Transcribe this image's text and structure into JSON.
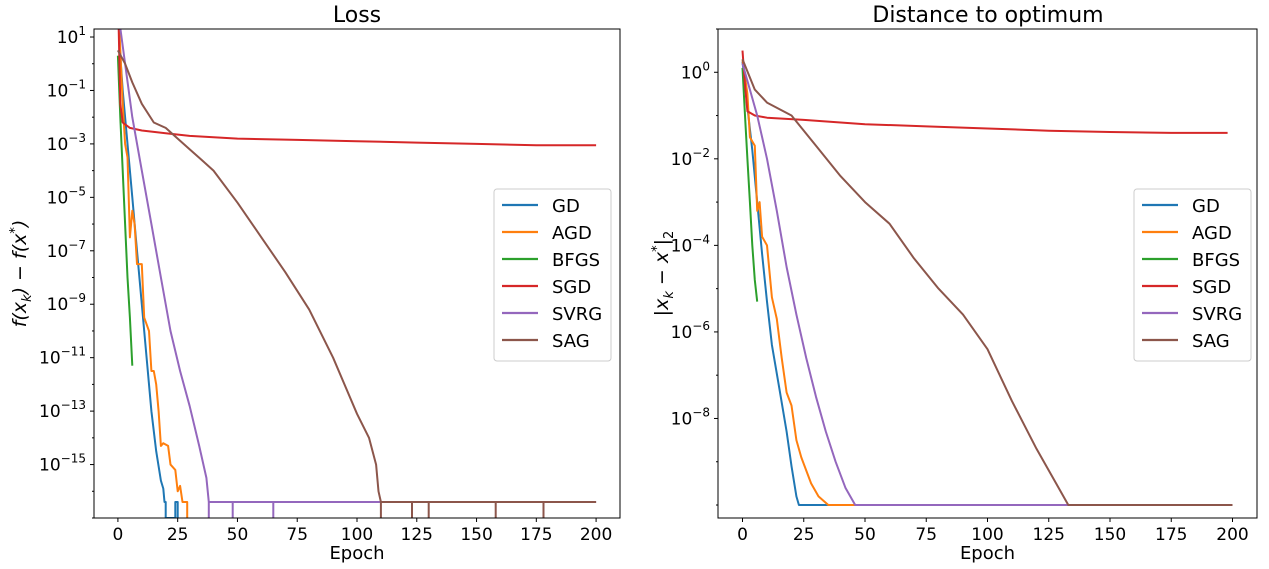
{
  "figure": {
    "background": "#ffffff"
  },
  "chart_data": [
    {
      "type": "line",
      "title": "Loss",
      "xlabel": "Epoch",
      "ylabel_text": "f(x_k) − f(x*)",
      "xlim": [
        -10,
        210
      ],
      "xticks": [
        0,
        25,
        50,
        75,
        100,
        125,
        150,
        175,
        200
      ],
      "yscale": "log",
      "ylim_exp": [
        -17,
        1.3
      ],
      "yticks_exp": [
        1,
        -1,
        -3,
        -5,
        -7,
        -9,
        -11,
        -13,
        -15
      ],
      "ytick_labels": [
        {
          "base": "10",
          "exp": "1"
        },
        {
          "base": "10",
          "exp": "−1"
        },
        {
          "base": "10",
          "exp": "−3"
        },
        {
          "base": "10",
          "exp": "−5"
        },
        {
          "base": "10",
          "exp": "−7"
        },
        {
          "base": "10",
          "exp": "−9"
        },
        {
          "base": "10",
          "exp": "−11"
        },
        {
          "base": "10",
          "exp": "−13"
        },
        {
          "base": "10",
          "exp": "−15"
        }
      ],
      "grid": false,
      "legend": "center-right",
      "series": [
        {
          "name": "GD",
          "color": "#1f77b4",
          "log10_points": [
            [
              0,
              2.3
            ],
            [
              1,
              0.3
            ],
            [
              2,
              -1
            ],
            [
              4,
              -3
            ],
            [
              6,
              -5
            ],
            [
              8,
              -7
            ],
            [
              10,
              -9
            ],
            [
              12,
              -11
            ],
            [
              14,
              -13
            ],
            [
              16,
              -14.5
            ],
            [
              18,
              -15.6
            ],
            [
              19,
              -15.9
            ],
            [
              19.5,
              -16.4
            ],
            [
              20,
              -16.4
            ],
            [
              20,
              -17
            ],
            [
              24,
              -17
            ],
            [
              24,
              -16.4
            ],
            [
              25,
              -16.4
            ],
            [
              25,
              -17
            ]
          ]
        },
        {
          "name": "AGD",
          "color": "#ff7f0e",
          "log10_points": [
            [
              0,
              2.6
            ],
            [
              1,
              0.5
            ],
            [
              2,
              -1.5
            ],
            [
              3,
              -3
            ],
            [
              4,
              -3.5
            ],
            [
              5,
              -6.5
            ],
            [
              6,
              -5.5
            ],
            [
              7,
              -6
            ],
            [
              8,
              -7.5
            ],
            [
              10,
              -7.5
            ],
            [
              11,
              -9.5
            ],
            [
              13,
              -10
            ],
            [
              14,
              -11.5
            ],
            [
              15,
              -11.5
            ],
            [
              16,
              -12
            ],
            [
              17,
              -13
            ],
            [
              18,
              -14.3
            ],
            [
              19,
              -14.2
            ],
            [
              21,
              -14.3
            ],
            [
              22,
              -15
            ],
            [
              24,
              -15.2
            ],
            [
              25,
              -16
            ],
            [
              26,
              -15.8
            ],
            [
              27,
              -16.4
            ],
            [
              29,
              -16.4
            ],
            [
              29,
              -17
            ]
          ]
        },
        {
          "name": "BFGS",
          "color": "#2ca02c",
          "log10_points": [
            [
              0,
              0.3
            ],
            [
              1,
              -2
            ],
            [
              2,
              -4
            ],
            [
              3,
              -6
            ],
            [
              4,
              -8
            ],
            [
              5,
              -9.5
            ],
            [
              6,
              -11.3
            ]
          ]
        },
        {
          "name": "SGD",
          "color": "#d62728",
          "log10_points": [
            [
              0,
              2.7
            ],
            [
              1,
              -1.5
            ],
            [
              2,
              -2.2
            ],
            [
              5,
              -2.4
            ],
            [
              10,
              -2.5
            ],
            [
              20,
              -2.6
            ],
            [
              30,
              -2.7
            ],
            [
              50,
              -2.8
            ],
            [
              75,
              -2.85
            ],
            [
              100,
              -2.9
            ],
            [
              125,
              -2.95
            ],
            [
              150,
              -3.0
            ],
            [
              175,
              -3.05
            ],
            [
              200,
              -3.05
            ]
          ]
        },
        {
          "name": "SVRG",
          "color": "#9467bd",
          "log10_points": [
            [
              0,
              2
            ],
            [
              3,
              0
            ],
            [
              6,
              -2
            ],
            [
              10,
              -4
            ],
            [
              14,
              -6
            ],
            [
              18,
              -8
            ],
            [
              22,
              -10
            ],
            [
              26,
              -11.5
            ],
            [
              30,
              -12.8
            ],
            [
              34,
              -14.3
            ],
            [
              37,
              -15.5
            ],
            [
              38,
              -16.4
            ],
            [
              38,
              -17
            ],
            [
              38,
              -16.4
            ],
            [
              48,
              -16.4
            ],
            [
              48,
              -17
            ],
            [
              48,
              -16.4
            ],
            [
              65,
              -16.4
            ],
            [
              65,
              -17
            ],
            [
              65,
              -16.4
            ],
            [
              200,
              -16.4
            ]
          ]
        },
        {
          "name": "SAG",
          "color": "#8c564b",
          "log10_points": [
            [
              0,
              0.5
            ],
            [
              3,
              0
            ],
            [
              6,
              -0.7
            ],
            [
              10,
              -1.5
            ],
            [
              15,
              -2.2
            ],
            [
              20,
              -2.4
            ],
            [
              25,
              -2.8
            ],
            [
              30,
              -3.2
            ],
            [
              35,
              -3.6
            ],
            [
              40,
              -4
            ],
            [
              50,
              -5.2
            ],
            [
              60,
              -6.5
            ],
            [
              70,
              -7.8
            ],
            [
              80,
              -9.2
            ],
            [
              90,
              -11
            ],
            [
              100,
              -13.1
            ],
            [
              105,
              -14
            ],
            [
              108,
              -15
            ],
            [
              109,
              -16
            ],
            [
              110,
              -16.4
            ],
            [
              110,
              -17
            ],
            [
              110,
              -16.4
            ],
            [
              123,
              -16.4
            ],
            [
              123,
              -17
            ],
            [
              123,
              -16.4
            ],
            [
              130,
              -16.4
            ],
            [
              130,
              -17
            ],
            [
              130,
              -16.4
            ],
            [
              158,
              -16.4
            ],
            [
              158,
              -17
            ],
            [
              158,
              -16.4
            ],
            [
              178,
              -16.4
            ],
            [
              178,
              -17
            ],
            [
              178,
              -16.4
            ],
            [
              200,
              -16.4
            ]
          ]
        }
      ]
    },
    {
      "type": "line",
      "title": "Distance to optimum",
      "xlabel": "Epoch",
      "ylabel_text": "|x_k − x*|₂",
      "xlim": [
        -10,
        210
      ],
      "xticks": [
        0,
        25,
        50,
        75,
        100,
        125,
        150,
        175,
        200
      ],
      "yscale": "log",
      "ylim_exp": [
        -10.3,
        1.0
      ],
      "yticks_exp": [
        0,
        -2,
        -4,
        -6,
        -8
      ],
      "ytick_labels": [
        {
          "base": "10",
          "exp": "0"
        },
        {
          "base": "10",
          "exp": "−2"
        },
        {
          "base": "10",
          "exp": "−4"
        },
        {
          "base": "10",
          "exp": "−6"
        },
        {
          "base": "10",
          "exp": "−8"
        }
      ],
      "grid": false,
      "legend": "center-right",
      "series": [
        {
          "name": "GD",
          "color": "#1f77b4",
          "log10_points": [
            [
              0,
              0.25
            ],
            [
              2,
              -0.8
            ],
            [
              4,
              -1.8
            ],
            [
              6,
              -3
            ],
            [
              8,
              -4.2
            ],
            [
              10,
              -5.3
            ],
            [
              12,
              -6.3
            ],
            [
              15,
              -7.3
            ],
            [
              18,
              -8.3
            ],
            [
              20,
              -9.1
            ],
            [
              22,
              -9.8
            ],
            [
              23,
              -10
            ],
            [
              200,
              -10
            ]
          ]
        },
        {
          "name": "AGD",
          "color": "#ff7f0e",
          "log10_points": [
            [
              0,
              0.3
            ],
            [
              2,
              -0.5
            ],
            [
              3,
              -1.5
            ],
            [
              5,
              -1.7
            ],
            [
              6,
              -3.2
            ],
            [
              7,
              -3
            ],
            [
              8,
              -3.8
            ],
            [
              10,
              -4
            ],
            [
              12,
              -5.2
            ],
            [
              14,
              -5.7
            ],
            [
              16,
              -6.6
            ],
            [
              18,
              -7.4
            ],
            [
              20,
              -7.7
            ],
            [
              22,
              -8.5
            ],
            [
              24,
              -8.9
            ],
            [
              26,
              -9.2
            ],
            [
              28,
              -9.5
            ],
            [
              31,
              -9.8
            ],
            [
              35,
              -10
            ],
            [
              200,
              -10
            ]
          ]
        },
        {
          "name": "BFGS",
          "color": "#2ca02c",
          "log10_points": [
            [
              0,
              0.1
            ],
            [
              1,
              -1
            ],
            [
              2,
              -2
            ],
            [
              3,
              -3
            ],
            [
              4,
              -4
            ],
            [
              5,
              -4.8
            ],
            [
              6,
              -5.3
            ]
          ]
        },
        {
          "name": "SGD",
          "color": "#d62728",
          "log10_points": [
            [
              0,
              0.5
            ],
            [
              1,
              -0.3
            ],
            [
              2,
              -0.9
            ],
            [
              5,
              -1
            ],
            [
              10,
              -1.05
            ],
            [
              25,
              -1.1
            ],
            [
              50,
              -1.2
            ],
            [
              75,
              -1.25
            ],
            [
              100,
              -1.3
            ],
            [
              125,
              -1.35
            ],
            [
              150,
              -1.38
            ],
            [
              175,
              -1.4
            ],
            [
              198,
              -1.4
            ]
          ]
        },
        {
          "name": "SVRG",
          "color": "#9467bd",
          "log10_points": [
            [
              0,
              0.2
            ],
            [
              3,
              -0.4
            ],
            [
              6,
              -1
            ],
            [
              10,
              -2
            ],
            [
              14,
              -3.2
            ],
            [
              18,
              -4.5
            ],
            [
              22,
              -5.6
            ],
            [
              26,
              -6.6
            ],
            [
              30,
              -7.5
            ],
            [
              34,
              -8.3
            ],
            [
              38,
              -9
            ],
            [
              42,
              -9.6
            ],
            [
              46,
              -10
            ],
            [
              200,
              -10
            ]
          ]
        },
        {
          "name": "SAG",
          "color": "#8c564b",
          "log10_points": [
            [
              0,
              0.3
            ],
            [
              5,
              -0.4
            ],
            [
              10,
              -0.7
            ],
            [
              20,
              -1
            ],
            [
              30,
              -1.7
            ],
            [
              40,
              -2.4
            ],
            [
              50,
              -3
            ],
            [
              60,
              -3.5
            ],
            [
              70,
              -4.3
            ],
            [
              80,
              -5
            ],
            [
              90,
              -5.6
            ],
            [
              100,
              -6.4
            ],
            [
              110,
              -7.6
            ],
            [
              120,
              -8.7
            ],
            [
              128,
              -9.5
            ],
            [
              133,
              -10
            ],
            [
              200,
              -10
            ]
          ]
        }
      ]
    }
  ]
}
